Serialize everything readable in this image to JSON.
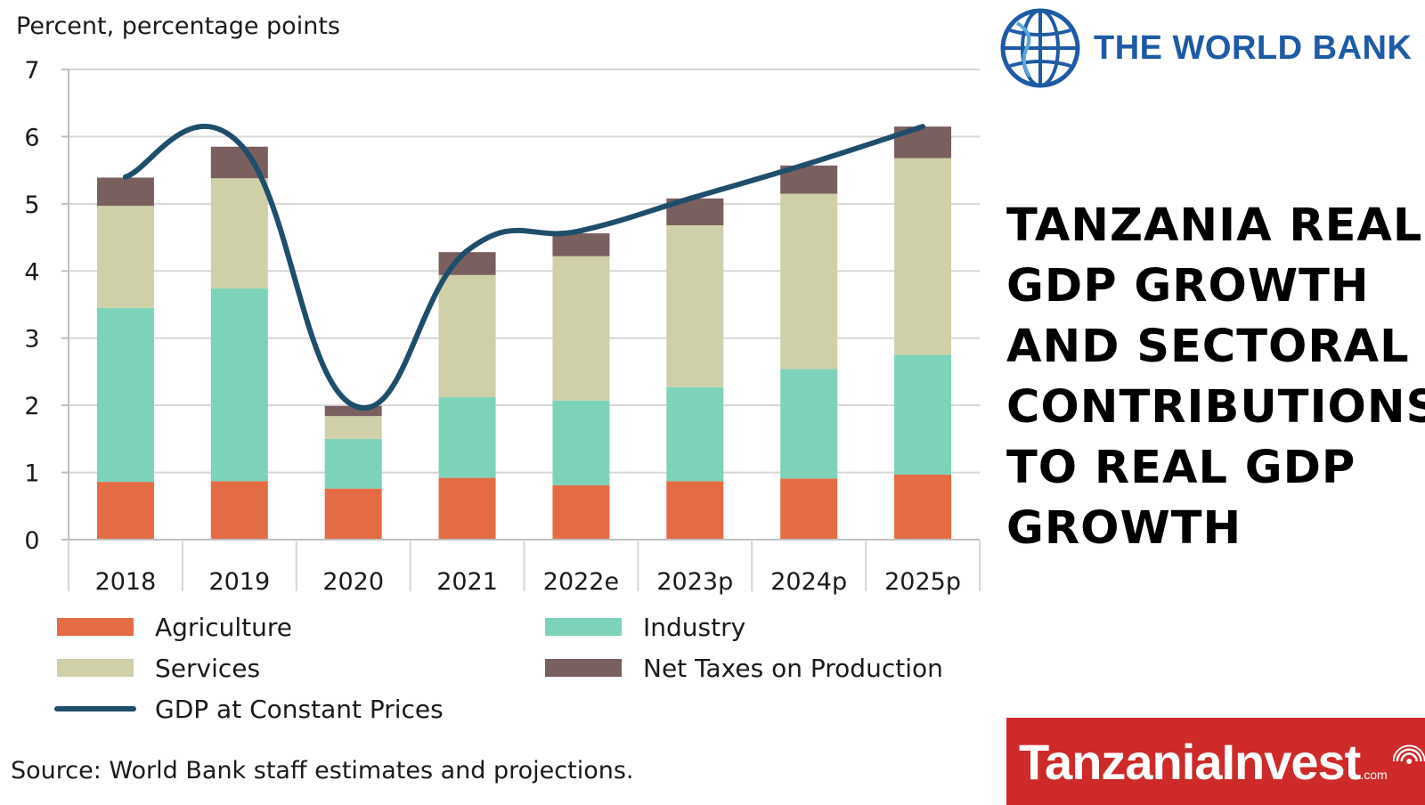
{
  "chart_data": {
    "type": "bar",
    "stacked": true,
    "ylabel": "Percent, percentage points",
    "ylim": [
      0,
      7
    ],
    "yticks": [
      "0",
      "1",
      "2",
      "3",
      "4",
      "5",
      "6",
      "7"
    ],
    "grid": true,
    "categories": [
      "2018",
      "2019",
      "2020",
      "2021",
      "2022e",
      "2023p",
      "2024p",
      "2025p"
    ],
    "series": [
      {
        "name": "Agriculture",
        "color": "#e46c45",
        "values": [
          0.86,
          0.87,
          0.76,
          0.92,
          0.81,
          0.87,
          0.91,
          0.97
        ]
      },
      {
        "name": "Industry",
        "color": "#7dd3b9",
        "values": [
          2.59,
          2.87,
          0.74,
          1.2,
          1.26,
          1.4,
          1.63,
          1.78
        ]
      },
      {
        "name": "Services",
        "color": "#cfd0a8",
        "values": [
          1.52,
          1.64,
          0.34,
          1.82,
          2.15,
          2.41,
          2.61,
          2.93
        ]
      },
      {
        "name": "Net Taxes on Production",
        "color": "#7a5f5f",
        "values": [
          0.42,
          0.47,
          0.15,
          0.34,
          0.34,
          0.4,
          0.42,
          0.47
        ]
      }
    ],
    "line_series": {
      "name": "GDP at Constant Prices",
      "color": "#1f4e6b",
      "values": [
        5.4,
        5.9,
        2.0,
        4.3,
        4.6,
        5.1,
        5.6,
        6.15
      ]
    },
    "legend": [
      "Agriculture",
      "Industry",
      "Services",
      "Net Taxes on Production",
      "GDP at Constant Prices"
    ],
    "legend_position": "bottom",
    "source": "Source: World Bank staff estimates and projections."
  },
  "branding": {
    "world_bank": "THE WORLD BANK",
    "tanzaniainvest": "TanzaniaInvest",
    "tanzaniainvest_suffix": ".com"
  },
  "headline": {
    "lines": [
      "TANZANIA REAL",
      "GDP GROWTH",
      "AND SECTORAL",
      "CONTRIBUTIONS",
      "TO REAL GDP",
      "GROWTH"
    ]
  },
  "colors": {
    "world_bank_blue": "#1f5aa6",
    "tanzaniainvest_red": "#cf2a2a"
  }
}
